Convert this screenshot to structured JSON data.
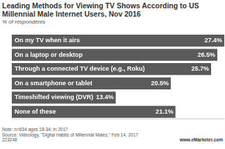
{
  "chart_data": {
    "type": "bar",
    "orientation": "horizontal",
    "title": "Leading Methods for Viewing TV Shows According to US Millennial Male Internet Users, Nov 2016",
    "subtitle": "% of respondents",
    "categories": [
      "On my TV when it airs",
      "On a laptop or desktop",
      "Through a connected TV device (e.g., Roku)",
      "On a smartphone or tablet",
      "Timeshifted viewing (DVR)",
      "None of these"
    ],
    "values": [
      27.4,
      26.5,
      25.7,
      20.5,
      13.4,
      21.1
    ],
    "value_labels": [
      "27.4%",
      "26.5%",
      "25.7%",
      "20.5%",
      "13.4%",
      "21.1%"
    ],
    "color": "#5a5a5a",
    "xlim": [
      0,
      27.4
    ],
    "data_labels": true,
    "tick_labels": "y",
    "grid": false,
    "annotations": [
      "Note: n=634 ages 18-34; in 2017",
      "Source: Videology, \"Digital Habits of Millennial Males,\" Feb 14, 2017",
      "223248",
      "www.eMarketer.com"
    ]
  }
}
